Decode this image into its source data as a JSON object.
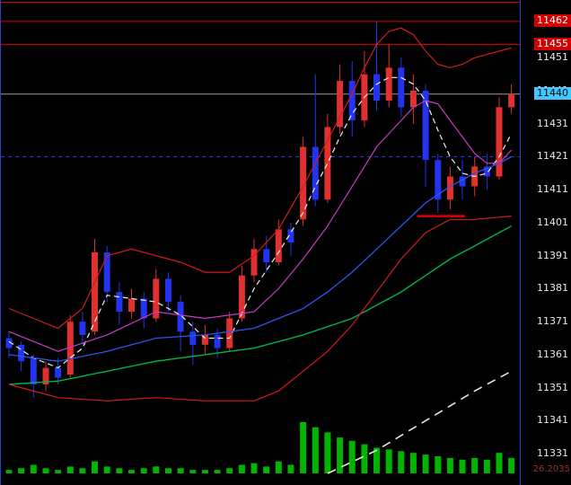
{
  "window_title": "futures candlestick chart",
  "chart_data": {
    "type": "candlestick",
    "title": "",
    "xlabel": "",
    "ylabel": "price",
    "view": {
      "price_top": 11468.5,
      "price_bottom": 11321.5
    },
    "price_axis": {
      "ticks": [
        11451,
        11441,
        11431,
        11421,
        11411,
        11401,
        11391,
        11381,
        11371,
        11361,
        11351,
        11341,
        11331
      ],
      "tags": [
        {
          "label": "11462",
          "price": 11462,
          "bg": "#d40000",
          "fg": "#ffffff"
        },
        {
          "label": "11455",
          "price": 11455,
          "bg": "#d40000",
          "fg": "#ffffff"
        },
        {
          "label": "11440",
          "price": 11440,
          "bg": "#3fc8ff",
          "fg": "#000000"
        }
      ],
      "bottom_label": "26.2035"
    },
    "colors": {
      "background": "#000000",
      "up_candle": "#e03030",
      "down_candle": "#2433f0",
      "volume": "#00b400",
      "axis_text": "#e8e8e8",
      "frame_blue": "#2b3fd6",
      "alert_red": "#d40000"
    },
    "hlines": [
      {
        "name": "resistance-line-11462",
        "price": 11462,
        "color": "#e00000",
        "dash": "none"
      },
      {
        "name": "resistance-line-11455",
        "price": 11455,
        "color": "#e00000",
        "dash": "none"
      },
      {
        "name": "current-price-line-11440",
        "price": 11440,
        "color": "#9a9a9a",
        "dash": "none"
      },
      {
        "name": "support-line-11421",
        "price": 11421,
        "color": "#2b3fd6",
        "dash": "4 4"
      }
    ],
    "segments": [
      {
        "name": "red-support-segment",
        "from": 33.3,
        "to": 37.2,
        "price": 11403,
        "color": "#e00000",
        "width": 2.5
      }
    ],
    "candles": [
      [
        11366,
        11368,
        11360,
        11363
      ],
      [
        11364,
        11365,
        11356,
        11359
      ],
      [
        11360,
        11361,
        11348,
        11352
      ],
      [
        11352,
        11359,
        11350,
        11357
      ],
      [
        11357,
        11360,
        11352,
        11354
      ],
      [
        11355,
        11373,
        11354,
        11371
      ],
      [
        11371,
        11374,
        11364,
        11367
      ],
      [
        11368,
        11396,
        11367,
        11392
      ],
      [
        11392,
        11394,
        11377,
        11380
      ],
      [
        11380,
        11383,
        11370,
        11374
      ],
      [
        11374,
        11381,
        11372,
        11378
      ],
      [
        11378,
        11380,
        11369,
        11372
      ],
      [
        11372,
        11387,
        11371,
        11384
      ],
      [
        11384,
        11386,
        11374,
        11377
      ],
      [
        11377,
        11379,
        11362,
        11368
      ],
      [
        11368,
        11371,
        11358,
        11364
      ],
      [
        11364,
        11370,
        11361,
        11367
      ],
      [
        11367,
        11369,
        11360,
        11363
      ],
      [
        11363,
        11374,
        11362,
        11372
      ],
      [
        11372,
        11388,
        11371,
        11385
      ],
      [
        11385,
        11396,
        11383,
        11393
      ],
      [
        11393,
        11397,
        11386,
        11389
      ],
      [
        11389,
        11402,
        11388,
        11399
      ],
      [
        11399,
        11401,
        11391,
        11395
      ],
      [
        11402,
        11427,
        11400,
        11424
      ],
      [
        11424,
        11446,
        11406,
        11408
      ],
      [
        11408,
        11434,
        11407,
        11430
      ],
      [
        11430,
        11449,
        11428,
        11444
      ],
      [
        11444,
        11450,
        11427,
        11432
      ],
      [
        11432,
        11453,
        11430,
        11446
      ],
      [
        11446,
        11462,
        11435,
        11438
      ],
      [
        11438,
        11455,
        11436,
        11448
      ],
      [
        11448,
        11451,
        11433,
        11436
      ],
      [
        11436,
        11446,
        11431,
        11441
      ],
      [
        11441,
        11443,
        11412,
        11420
      ],
      [
        11420,
        11422,
        11404,
        11408
      ],
      [
        11408,
        11418,
        11405,
        11415
      ],
      [
        11415,
        11420,
        11408,
        11412
      ],
      [
        11412,
        11421,
        11409,
        11418
      ],
      [
        11418,
        11422,
        11411,
        11415
      ],
      [
        11415,
        11439,
        11414,
        11436
      ],
      [
        11436,
        11443,
        11434,
        11440
      ]
    ],
    "volume": [
      2,
      3,
      5,
      3,
      2,
      4,
      3,
      7,
      4,
      3,
      2,
      3,
      4,
      3,
      3,
      2,
      2,
      2,
      3,
      5,
      6,
      4,
      7,
      5,
      30,
      27,
      24,
      21,
      19,
      17,
      15,
      14,
      13,
      12,
      11,
      10,
      9,
      8,
      9,
      8,
      12,
      9
    ],
    "lines": [
      {
        "name": "ma-fast-white-dashed",
        "color": "#f0f0f0",
        "width": 1.2,
        "dash": "6 4",
        "points": [
          [
            0,
            11365
          ],
          [
            2,
            11360
          ],
          [
            4,
            11357
          ],
          [
            6,
            11363
          ],
          [
            8,
            11379
          ],
          [
            10,
            11378
          ],
          [
            12,
            11377
          ],
          [
            14,
            11373
          ],
          [
            16,
            11366
          ],
          [
            18,
            11366
          ],
          [
            20,
            11381
          ],
          [
            22,
            11392
          ],
          [
            24,
            11404
          ],
          [
            25,
            11412
          ],
          [
            26,
            11419
          ],
          [
            27,
            11427
          ],
          [
            28,
            11434
          ],
          [
            29,
            11439
          ],
          [
            30,
            11443
          ],
          [
            31,
            11445
          ],
          [
            32,
            11445
          ],
          [
            33,
            11443
          ],
          [
            34,
            11438
          ],
          [
            35,
            11429
          ],
          [
            36,
            11421
          ],
          [
            37,
            11416
          ],
          [
            38,
            11415
          ],
          [
            39,
            11416
          ],
          [
            40,
            11421
          ],
          [
            41,
            11428
          ]
        ]
      },
      {
        "name": "ma-mid-magenta",
        "color": "#c93ac9",
        "width": 1.2,
        "dash": "none",
        "points": [
          [
            0,
            11368
          ],
          [
            4,
            11362
          ],
          [
            8,
            11367
          ],
          [
            12,
            11374
          ],
          [
            16,
            11372
          ],
          [
            20,
            11374
          ],
          [
            22,
            11381
          ],
          [
            24,
            11390
          ],
          [
            26,
            11400
          ],
          [
            28,
            11412
          ],
          [
            30,
            11424
          ],
          [
            32,
            11432
          ],
          [
            33,
            11436
          ],
          [
            34,
            11438
          ],
          [
            35,
            11437
          ],
          [
            36,
            11432
          ],
          [
            37,
            11427
          ],
          [
            38,
            11422
          ],
          [
            39,
            11419
          ],
          [
            40,
            11419
          ],
          [
            41,
            11423
          ]
        ]
      },
      {
        "name": "ma-slow-blue",
        "color": "#2d55e8",
        "width": 1.3,
        "dash": "none",
        "points": [
          [
            0,
            11361
          ],
          [
            4,
            11359
          ],
          [
            8,
            11362
          ],
          [
            12,
            11366
          ],
          [
            16,
            11367
          ],
          [
            20,
            11369
          ],
          [
            24,
            11375
          ],
          [
            26,
            11380
          ],
          [
            28,
            11386
          ],
          [
            30,
            11393
          ],
          [
            32,
            11400
          ],
          [
            34,
            11407
          ],
          [
            36,
            11412
          ],
          [
            38,
            11416
          ],
          [
            40,
            11419
          ],
          [
            41,
            11421
          ]
        ]
      },
      {
        "name": "ma-long-green",
        "color": "#00b44b",
        "width": 1.4,
        "dash": "none",
        "points": [
          [
            0,
            11352
          ],
          [
            4,
            11353
          ],
          [
            8,
            11356
          ],
          [
            12,
            11359
          ],
          [
            16,
            11361
          ],
          [
            20,
            11363
          ],
          [
            24,
            11367
          ],
          [
            28,
            11372
          ],
          [
            32,
            11380
          ],
          [
            34,
            11385
          ],
          [
            36,
            11390
          ],
          [
            38,
            11394
          ],
          [
            40,
            11398
          ],
          [
            41,
            11400
          ]
        ]
      },
      {
        "name": "band-upper-red",
        "color": "#d41c1c",
        "width": 1.2,
        "dash": "none",
        "points": [
          [
            0,
            11375
          ],
          [
            2,
            11372
          ],
          [
            4,
            11369
          ],
          [
            6,
            11375
          ],
          [
            8,
            11391
          ],
          [
            10,
            11393
          ],
          [
            12,
            11391
          ],
          [
            14,
            11389
          ],
          [
            16,
            11386
          ],
          [
            18,
            11386
          ],
          [
            20,
            11391
          ],
          [
            22,
            11399
          ],
          [
            24,
            11412
          ],
          [
            26,
            11426
          ],
          [
            28,
            11440
          ],
          [
            29,
            11448
          ],
          [
            30,
            11455
          ],
          [
            31,
            11459
          ],
          [
            32,
            11460
          ],
          [
            33,
            11458
          ],
          [
            34,
            11453
          ],
          [
            35,
            11449
          ],
          [
            36,
            11448
          ],
          [
            37,
            11449
          ],
          [
            38,
            11451
          ],
          [
            39,
            11452
          ],
          [
            40,
            11453
          ],
          [
            41,
            11454
          ]
        ]
      },
      {
        "name": "band-lower-red",
        "color": "#d41c1c",
        "width": 1.2,
        "dash": "none",
        "points": [
          [
            0,
            11352
          ],
          [
            4,
            11348
          ],
          [
            8,
            11347
          ],
          [
            12,
            11348
          ],
          [
            16,
            11347
          ],
          [
            20,
            11347
          ],
          [
            22,
            11350
          ],
          [
            24,
            11356
          ],
          [
            26,
            11362
          ],
          [
            28,
            11370
          ],
          [
            30,
            11380
          ],
          [
            32,
            11390
          ],
          [
            34,
            11398
          ],
          [
            36,
            11402
          ],
          [
            38,
            11402
          ],
          [
            41,
            11403
          ]
        ]
      },
      {
        "name": "volume-trend-white-dashed",
        "color": "#e8e8d8",
        "width": 1.6,
        "dash": "10 7",
        "points": [
          [
            26,
            11325
          ],
          [
            30,
            11332
          ],
          [
            34,
            11341
          ],
          [
            38,
            11350
          ],
          [
            41,
            11356
          ]
        ]
      }
    ]
  }
}
